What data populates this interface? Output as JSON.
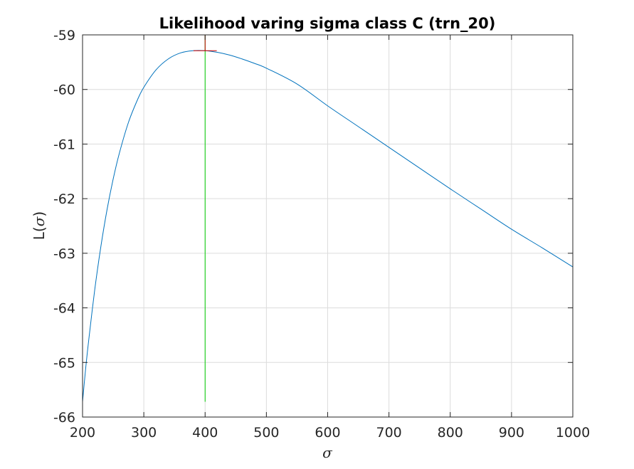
{
  "chart_data": {
    "type": "line",
    "title": "Likelihood varing sigma class C (trn_20)",
    "xlabel": "σ",
    "ylabel_prefix": "L(",
    "ylabel_symbol": "σ",
    "ylabel_suffix": ")",
    "xlim": [
      200,
      1000
    ],
    "ylim": [
      -66,
      -59
    ],
    "xticks": [
      200,
      300,
      400,
      500,
      600,
      700,
      800,
      900,
      1000
    ],
    "yticks": [
      -66,
      -65,
      -64,
      -63,
      -62,
      -61,
      -60,
      -59
    ],
    "xtick_labels": [
      "200",
      "300",
      "400",
      "500",
      "600",
      "700",
      "800",
      "900",
      "1000"
    ],
    "ytick_labels": [
      "-66",
      "-65",
      "-64",
      "-63",
      "-62",
      "-61",
      "-60",
      "-59"
    ],
    "grid": true,
    "series": [
      {
        "color": "#0072BD",
        "x": [
          200,
          205,
          210,
          220,
          230,
          240,
          250,
          260,
          275,
          290,
          300,
          320,
          340,
          360,
          380,
          400,
          420,
          440,
          460,
          480,
          500,
          550,
          600,
          650,
          700,
          750,
          800,
          850,
          900,
          950,
          1000
        ],
        "y": [
          -65.72,
          -65.12,
          -64.6,
          -63.66,
          -62.87,
          -62.2,
          -61.64,
          -61.17,
          -60.6,
          -60.18,
          -59.96,
          -59.64,
          -59.44,
          -59.33,
          -59.29,
          -59.29,
          -59.32,
          -59.37,
          -59.44,
          -59.52,
          -59.61,
          -59.9,
          -60.3,
          -60.68,
          -61.06,
          -61.44,
          -61.82,
          -62.19,
          -62.56,
          -62.9,
          -63.25
        ]
      }
    ],
    "annotations": [
      {
        "kind": "vline",
        "x": 400,
        "y_from": -65.72,
        "y_to": -59.0,
        "color": "#00CC00"
      },
      {
        "kind": "hline",
        "y": -59.29,
        "x_from": 381,
        "x_to": 419,
        "color": "#CC0000"
      },
      {
        "kind": "vline",
        "x": 400,
        "y_from": -59.29,
        "y_to": -59.0,
        "color": "#CC0000"
      }
    ]
  }
}
